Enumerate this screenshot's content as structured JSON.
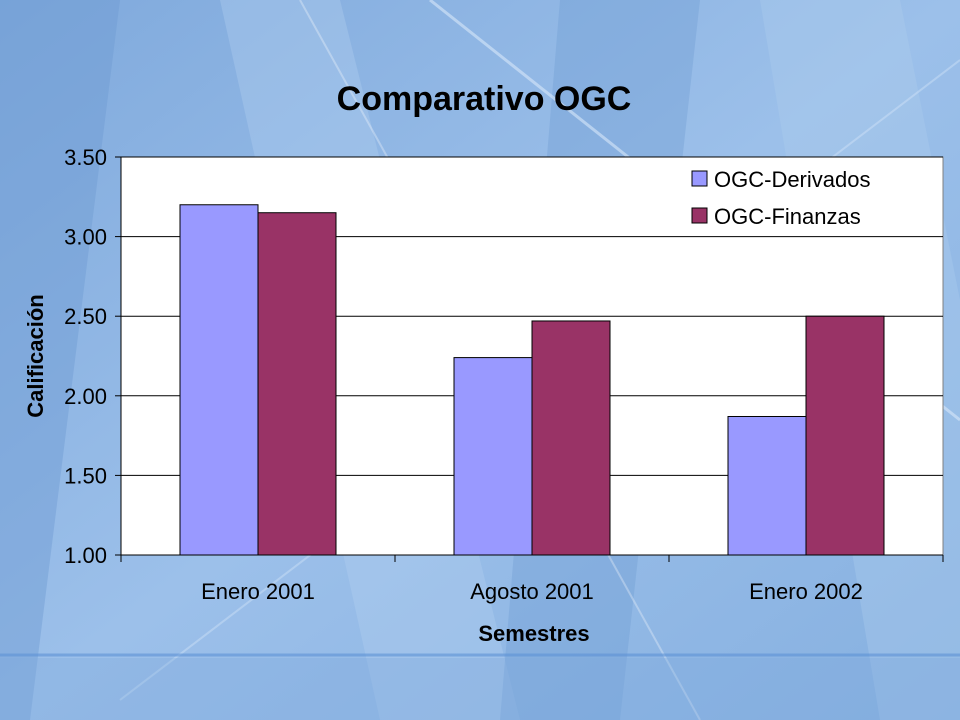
{
  "chart_data": {
    "type": "bar",
    "title": "Comparativo OGC",
    "xlabel": "Semestres",
    "ylabel": "Calificación",
    "categories": [
      "Enero 2001",
      "Agosto 2001",
      "Enero 2002"
    ],
    "series": [
      {
        "name": "OGC-Derivados",
        "values": [
          3.2,
          2.24,
          1.87
        ],
        "color": "#9999ff"
      },
      {
        "name": "OGC-Finanzas",
        "values": [
          3.15,
          2.47,
          2.5
        ],
        "color": "#993366"
      }
    ],
    "ylim": [
      1.0,
      3.5
    ],
    "yticks": [
      "1.00",
      "1.50",
      "2.00",
      "2.50",
      "3.00",
      "3.50"
    ],
    "ytick_values": [
      1.0,
      1.5,
      2.0,
      2.5,
      3.0,
      3.5
    ],
    "grid": true,
    "legend_position": "top-right",
    "plot_background": "#ffffff"
  }
}
